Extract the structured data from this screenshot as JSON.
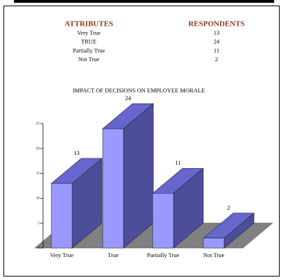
{
  "table": {
    "headers": [
      "ATTRIBUTES",
      "RESPONDENTS"
    ],
    "rows": [
      [
        "Very True",
        "13"
      ],
      [
        "TRUE",
        "24"
      ],
      [
        "Partially True",
        "11"
      ],
      [
        "Not True",
        "2"
      ]
    ]
  },
  "chart_data": {
    "type": "bar3d",
    "title": "IMPACT OF DECISIONS ON EMPLOYEE MORALE",
    "categories": [
      "Very True",
      "True",
      "Partially True",
      "Not True"
    ],
    "values": [
      13,
      24,
      11,
      2
    ],
    "color": "#9999ff",
    "ylim": [
      0,
      25
    ],
    "yticks": [
      0,
      5,
      10,
      15,
      20,
      25
    ]
  }
}
